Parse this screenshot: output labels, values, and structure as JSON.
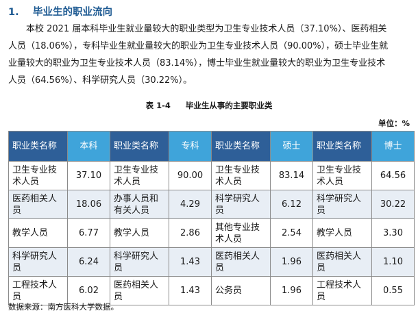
{
  "section": {
    "number": "1.",
    "title": "毕业生的职业流向"
  },
  "paragraph": {
    "lines": [
      "本校 2021 届本科毕业生就业量较大的职业类型为卫生专业技术人员（37.10%）、医药相关",
      "人员（18.06%），专科毕业生就业量较大的职业为卫生专业技术人员（90.00%），硕士毕业生就",
      "业量较大的职业为卫生专业技术人员（83.14%），博士毕业生就业量较大的职业为卫生专业技术",
      "人员（64.56%）、科学研究人员（30.22%）。"
    ]
  },
  "table": {
    "caption_id": "表 1-4",
    "caption_title": "毕业生从事的主要职业类",
    "unit": "单位：%",
    "headers": [
      "职业类名称",
      "本科",
      "职业类名称",
      "专科",
      "职业类名称",
      "硕士",
      "职业类名称",
      "博士"
    ],
    "rows": [
      [
        "卫生专业技术人员",
        "37.10",
        "卫生专业技术人员",
        "90.00",
        "卫生专业技术人员",
        "83.14",
        "卫生专业技术人员",
        "64.56"
      ],
      [
        "医药相关人员",
        "18.06",
        "办事人员和有关人员",
        "4.29",
        "科学研究人员",
        "6.12",
        "科学研究人员",
        "30.22"
      ],
      [
        "教学人员",
        "6.77",
        "教学人员",
        "2.86",
        "其他专业技术人员",
        "2.54",
        "教学人员",
        "3.30"
      ],
      [
        "科学研究人员",
        "6.24",
        "科学研究人员",
        "1.43",
        "医药相关人员",
        "1.96",
        "医药相关人员",
        "1.10"
      ],
      [
        "工程技术人员",
        "6.02",
        "医药相关人员",
        "1.43",
        "公务员",
        "1.96",
        "工程技术人员",
        "0.55"
      ]
    ]
  },
  "source": "数据来源：南方医科大学数据。",
  "colors": {
    "title": "#1f5b93",
    "header_dark": "#2e5f98",
    "header_light": "#3fa4da",
    "row_alt": "#e8eef5"
  }
}
